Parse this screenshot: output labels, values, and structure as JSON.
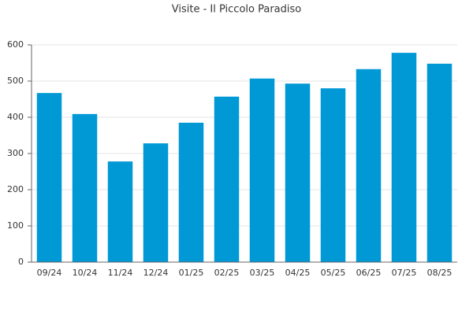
{
  "chart_data": {
    "type": "bar",
    "title": "Visite - Il Piccolo Paradiso",
    "categories": [
      "09/24",
      "10/24",
      "11/24",
      "12/24",
      "01/25",
      "02/25",
      "03/25",
      "04/25",
      "05/25",
      "06/25",
      "07/25",
      "08/25"
    ],
    "values": [
      467,
      409,
      278,
      328,
      385,
      457,
      507,
      493,
      480,
      533,
      578,
      548
    ],
    "color": "#0099d6",
    "ylim": [
      0,
      600
    ],
    "yticks": [
      0,
      100,
      200,
      300,
      400,
      500,
      600
    ],
    "grid": true
  }
}
